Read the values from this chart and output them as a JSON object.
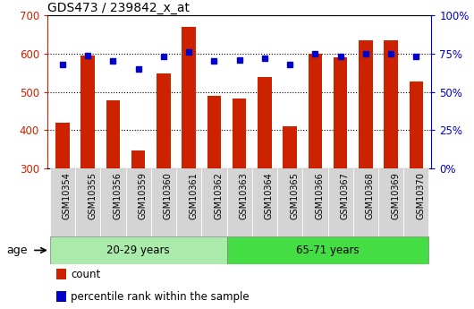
{
  "title": "GDS473 / 239842_x_at",
  "samples": [
    "GSM10354",
    "GSM10355",
    "GSM10356",
    "GSM10359",
    "GSM10360",
    "GSM10361",
    "GSM10362",
    "GSM10363",
    "GSM10364",
    "GSM10365",
    "GSM10366",
    "GSM10367",
    "GSM10368",
    "GSM10369",
    "GSM10370"
  ],
  "counts": [
    420,
    595,
    478,
    346,
    548,
    670,
    490,
    483,
    538,
    410,
    600,
    590,
    636,
    636,
    528
  ],
  "percentiles": [
    68,
    74,
    70,
    65,
    73,
    76,
    70,
    71,
    72,
    68,
    75,
    73,
    75,
    75,
    73
  ],
  "group1_label": "20-29 years",
  "group2_label": "65-71 years",
  "group1_count": 7,
  "group2_count": 8,
  "ylim_left": [
    300,
    700
  ],
  "yticks_left": [
    300,
    400,
    500,
    600,
    700
  ],
  "yticks_right": [
    0,
    25,
    50,
    75,
    100
  ],
  "bar_color": "#cc2200",
  "dot_color": "#0000cc",
  "group1_bg": "#aaeaaa",
  "group2_bg": "#44dd44",
  "xtick_bg": "#d4d4d4",
  "grid_color": "#000000",
  "legend_count_label": "count",
  "legend_pct_label": "percentile rank within the sample",
  "age_arrow_label": "age"
}
